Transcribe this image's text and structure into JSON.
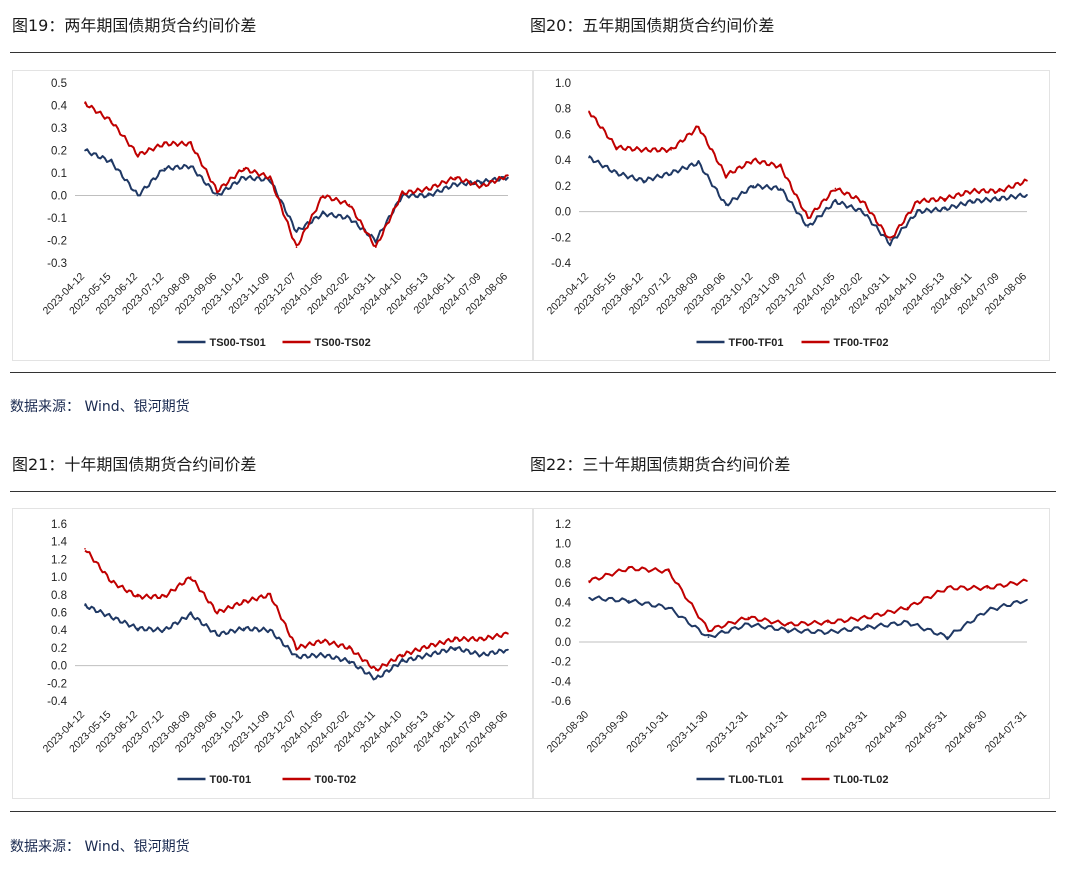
{
  "sections": [
    {
      "left_title": "图19：两年期国债期货合约间价差",
      "right_title": "图20：五年期国债期货合约间价差",
      "source": "数据来源：  Wind、银河期货"
    },
    {
      "left_title": "图21：十年期国债期货合约间价差",
      "right_title": "图22：三十年期国债期货合约间价差",
      "source": "数据来源：  Wind、银河期货"
    }
  ],
  "colors": {
    "series1": "#1f3864",
    "series2": "#c00000"
  },
  "chart_data": [
    {
      "type": "line",
      "title": "",
      "ylim": [
        -0.3,
        0.5
      ],
      "yticks": [
        "0.5",
        "0.4",
        "0.3",
        "0.2",
        "0.1",
        "0.0",
        "-0.1",
        "-0.2",
        "-0.3"
      ],
      "x": [
        "2023-04-12",
        "2023-05-15",
        "2023-06-12",
        "2023-07-12",
        "2023-08-09",
        "2023-09-06",
        "2023-10-12",
        "2023-11-09",
        "2023-12-07",
        "2024-01-05",
        "2024-02-02",
        "2024-03-11",
        "2024-04-10",
        "2024-05-13",
        "2024-06-11",
        "2024-07-09",
        "2024-08-06"
      ],
      "legend": "bottom-center",
      "series": [
        {
          "name": "TS00-TS01",
          "values": [
            0.2,
            0.15,
            0.0,
            0.12,
            0.13,
            0.0,
            0.08,
            0.07,
            -0.16,
            -0.08,
            -0.1,
            -0.2,
            0.0,
            0.0,
            0.05,
            0.06,
            0.08
          ]
        },
        {
          "name": "TS00-TS02",
          "values": [
            0.41,
            0.33,
            0.18,
            0.23,
            0.23,
            0.02,
            0.12,
            0.08,
            -0.23,
            0.0,
            -0.04,
            -0.23,
            0.01,
            0.03,
            0.08,
            0.04,
            0.09
          ]
        }
      ]
    },
    {
      "type": "line",
      "title": "",
      "ylim": [
        -0.4,
        1.0
      ],
      "yticks": [
        "1.0",
        "0.8",
        "0.6",
        "0.4",
        "0.2",
        "0.0",
        "-0.2",
        "-0.4"
      ],
      "x": [
        "2023-04-12",
        "2023-05-15",
        "2023-06-12",
        "2023-07-12",
        "2023-08-09",
        "2023-09-06",
        "2023-10-12",
        "2023-11-09",
        "2023-12-07",
        "2024-01-05",
        "2024-02-02",
        "2024-03-11",
        "2024-04-10",
        "2024-05-13",
        "2024-06-11",
        "2024-07-09",
        "2024-08-06"
      ],
      "legend": "bottom-center",
      "series": [
        {
          "name": "TF00-TF01",
          "values": [
            0.42,
            0.3,
            0.24,
            0.3,
            0.38,
            0.05,
            0.2,
            0.18,
            -0.12,
            0.08,
            0.0,
            -0.25,
            0.0,
            0.02,
            0.08,
            0.1,
            0.13
          ]
        },
        {
          "name": "TF00-TF02",
          "values": [
            0.78,
            0.5,
            0.48,
            0.48,
            0.66,
            0.28,
            0.4,
            0.35,
            -0.05,
            0.18,
            0.08,
            -0.22,
            0.08,
            0.1,
            0.16,
            0.16,
            0.24
          ]
        }
      ]
    },
    {
      "type": "line",
      "title": "",
      "ylim": [
        -0.4,
        1.6
      ],
      "yticks": [
        "1.6",
        "1.4",
        "1.2",
        "1.0",
        "0.8",
        "0.6",
        "0.4",
        "0.2",
        "0.0",
        "-0.2",
        "-0.4"
      ],
      "x": [
        "2023-04-12",
        "2023-05-15",
        "2023-06-12",
        "2023-07-12",
        "2023-08-09",
        "2023-09-06",
        "2023-10-12",
        "2023-11-09",
        "2023-12-07",
        "2024-01-05",
        "2024-02-02",
        "2024-03-11",
        "2024-04-10",
        "2024-05-13",
        "2024-06-11",
        "2024-07-09",
        "2024-08-06"
      ],
      "legend": "bottom-center",
      "series": [
        {
          "name": "T00-T01",
          "values": [
            0.68,
            0.55,
            0.42,
            0.4,
            0.58,
            0.35,
            0.42,
            0.4,
            0.1,
            0.12,
            0.05,
            -0.15,
            0.05,
            0.12,
            0.2,
            0.12,
            0.18
          ]
        },
        {
          "name": "T00-T02",
          "values": [
            1.32,
            0.95,
            0.78,
            0.78,
            1.0,
            0.6,
            0.72,
            0.8,
            0.2,
            0.28,
            0.2,
            -0.05,
            0.12,
            0.22,
            0.3,
            0.3,
            0.36
          ]
        }
      ]
    },
    {
      "type": "line",
      "title": "",
      "ylim": [
        -0.6,
        1.2
      ],
      "yticks": [
        "1.2",
        "1.0",
        "0.8",
        "0.6",
        "0.4",
        "0.2",
        "0.0",
        "-0.2",
        "-0.4",
        "-0.6"
      ],
      "x": [
        "2023-08-30",
        "2023-09-30",
        "2023-10-31",
        "2023-11-30",
        "2023-12-31",
        "2024-01-31",
        "2024-02-29",
        "2024-03-31",
        "2024-04-30",
        "2024-05-31",
        "2024-06-30",
        "2024-07-31"
      ],
      "legend": "bottom-center",
      "series": [
        {
          "name": "TL00-TL01",
          "values": [
            0.45,
            0.42,
            0.35,
            0.05,
            0.18,
            0.12,
            0.1,
            0.15,
            0.2,
            0.05,
            0.32,
            0.43
          ]
        },
        {
          "name": "TL00-TL02",
          "values": [
            0.62,
            0.75,
            0.72,
            0.12,
            0.25,
            0.18,
            0.2,
            0.25,
            0.35,
            0.55,
            0.55,
            0.62
          ]
        }
      ]
    }
  ]
}
